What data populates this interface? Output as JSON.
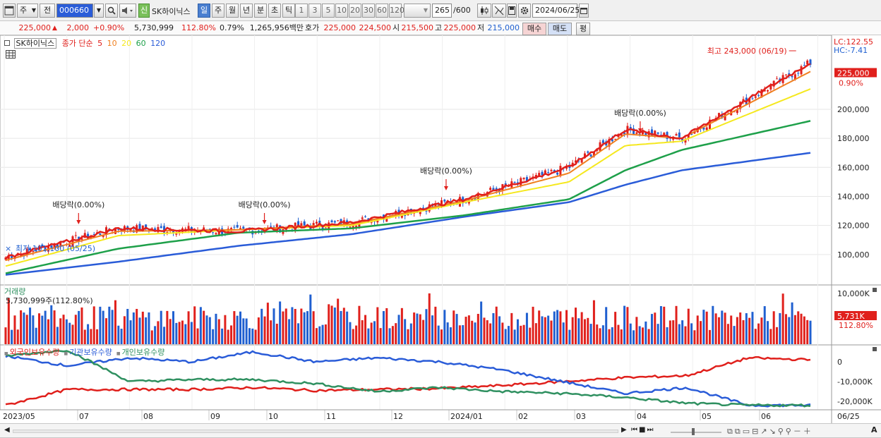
{
  "toolbar": {
    "period_type": "주",
    "prev_label": "전",
    "stock_code": "000660",
    "new_badge": "신",
    "stock_name": "SK하이닉스",
    "interval_buttons": [
      "일",
      "주",
      "월",
      "년",
      "분",
      "초",
      "틱"
    ],
    "active_interval": "일",
    "minute_buttons": [
      "1",
      "3",
      "5",
      "10",
      "20",
      "30",
      "60",
      "120"
    ],
    "count_value": "265",
    "count_total": "/600",
    "date_value": "2024/06/25"
  },
  "quote": {
    "price": "225,000",
    "change": "2,000",
    "change_pct": "+0.90%",
    "volume": "5,730,999",
    "volume_ratio": "112.80%",
    "turnover_pct": "0.79%",
    "trade_value": "1,265,956백만",
    "bid_label": "호가",
    "bid1": "225,000",
    "bid2": "224,500",
    "open_label": "시",
    "open": "215,500",
    "high_label": "고",
    "high": "225,000",
    "low_label": "저",
    "low": "215,000",
    "buy_label": "매수",
    "sell_label": "매도",
    "eval_label": "평"
  },
  "legend": {
    "stock_tag": "SK하이닉스",
    "ma_title": "종가 단순",
    "ma_periods": [
      "5",
      "10",
      "20",
      "60",
      "120"
    ],
    "lc": "LC:122.55",
    "hc": "HC:-7.41",
    "volume_title": "거래량",
    "volume_value": "5,730,999주(112.80%)",
    "holdings": [
      "외국인보유수량",
      "기관보유수량",
      "개인보유수량"
    ]
  },
  "colors": {
    "up": "#e0201c",
    "down": "#2060d0",
    "ma5": "#e0201c",
    "ma10": "#f08020",
    "ma20": "#f5e81e",
    "ma60": "#1ea04a",
    "ma120": "#2a5cd8",
    "foreign": "#e0201c",
    "institution": "#2a5cd8",
    "individual": "#2f9060"
  },
  "chart_data": {
    "type": "line",
    "title": "SK하이닉스",
    "x_ticks": [
      "2023/05",
      "07",
      "08",
      "09",
      "10",
      "11",
      "12",
      "2024/01",
      "02",
      "03",
      "04",
      "05",
      "06",
      "06/25"
    ],
    "price_axis": {
      "ticks": [
        "100,000",
        "120,000",
        "140,000",
        "160,000",
        "180,000",
        "200,000"
      ],
      "range": [
        80000,
        250000
      ]
    },
    "ma_series": [
      {
        "name": "5",
        "x": [
          "2023/05",
          "2023/07",
          "2023/09",
          "2023/11",
          "2024/01",
          "2024/03",
          "2024/04",
          "2024/05",
          "2024/06"
        ],
        "values": [
          98000,
          118000,
          116000,
          122000,
          138000,
          160000,
          186000,
          180000,
          232000
        ]
      },
      {
        "name": "10",
        "x": [
          "2023/05",
          "2023/07",
          "2023/09",
          "2023/11",
          "2024/01",
          "2024/03",
          "2024/04",
          "2024/05",
          "2024/06"
        ],
        "values": [
          96000,
          116000,
          117000,
          121000,
          137000,
          156000,
          183000,
          180000,
          226000
        ]
      },
      {
        "name": "20",
        "x": [
          "2023/05",
          "2023/07",
          "2023/09",
          "2023/11",
          "2024/01",
          "2024/03",
          "2024/04",
          "2024/05",
          "2024/06"
        ],
        "values": [
          92000,
          113000,
          117000,
          120000,
          136000,
          150000,
          175000,
          178000,
          214000
        ]
      },
      {
        "name": "60",
        "x": [
          "2023/05",
          "2023/07",
          "2023/09",
          "2023/11",
          "2024/01",
          "2024/03",
          "2024/04",
          "2024/05",
          "2024/06"
        ],
        "values": [
          87000,
          104000,
          115000,
          118000,
          127000,
          138000,
          158000,
          172000,
          192000
        ]
      },
      {
        "name": "120",
        "x": [
          "2023/05",
          "2023/07",
          "2023/09",
          "2023/11",
          "2024/01",
          "2024/03",
          "2024/04",
          "2024/05",
          "2024/06"
        ],
        "values": [
          86000,
          95000,
          106000,
          114000,
          126000,
          136000,
          148000,
          158000,
          170000
        ]
      }
    ],
    "annotations": [
      {
        "text": "배당락(0.00%)",
        "date": "2023/06/28"
      },
      {
        "text": "배당락(0.00%)",
        "date": "2023/09/26"
      },
      {
        "text": "배당락(0.00%)",
        "date": "2023/12/27"
      },
      {
        "text": "배당락(0.00%)",
        "date": "2024/03/28"
      },
      {
        "text": "최고 243,000 (06/19)",
        "date": "2024/06/19",
        "value": 243000
      },
      {
        "text": "최저 101,100 (05/25)",
        "date": "2023/05/25",
        "value": 101100
      }
    ],
    "last_price_label": "225,000",
    "last_change_label": "0.90%",
    "volume_axis": {
      "ticks": [
        "10,000K"
      ],
      "last_label": "5,731K",
      "last_pct": "112.80%"
    },
    "holdings_axis": {
      "ticks": [
        "0",
        "-10,000K",
        "-20,000K"
      ]
    }
  }
}
